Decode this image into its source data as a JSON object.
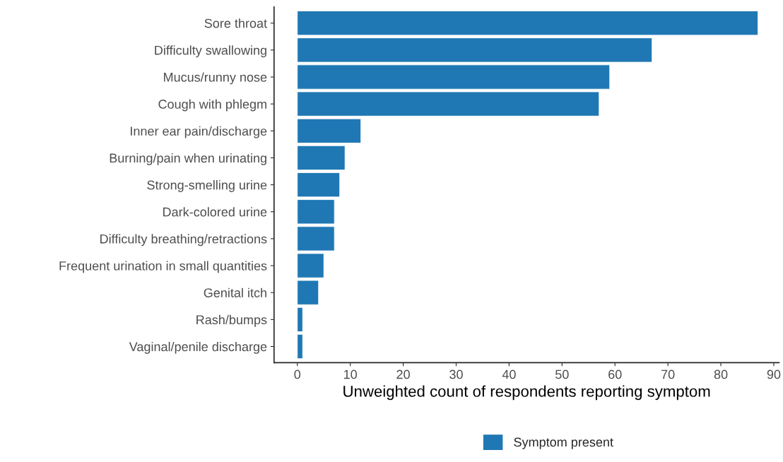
{
  "chart_data": {
    "type": "bar",
    "orientation": "horizontal",
    "categories": [
      "Sore throat",
      "Difficulty swallowing",
      "Mucus/runny nose",
      "Cough with phlegm",
      "Inner ear pain/discharge",
      "Burning/pain when urinating",
      "Strong-smelling urine",
      "Dark-colored urine",
      "Difficulty breathing/retractions",
      "Frequent urination in small quantities",
      "Genital itch",
      "Rash/bumps",
      "Vaginal/penile discharge"
    ],
    "series": [
      {
        "name": "Symptom present",
        "color": "#1f78b4",
        "values": [
          87,
          67,
          59,
          57,
          12,
          9,
          8,
          7,
          7,
          5,
          4,
          1,
          1
        ]
      }
    ],
    "xlabel": "Unweighted count of respondents reporting symptom",
    "xlim": [
      -4.4,
      91
    ],
    "xticks": [
      0,
      10,
      20,
      30,
      40,
      50,
      60,
      70,
      80,
      90
    ],
    "grid": false,
    "legend": "bottom"
  }
}
